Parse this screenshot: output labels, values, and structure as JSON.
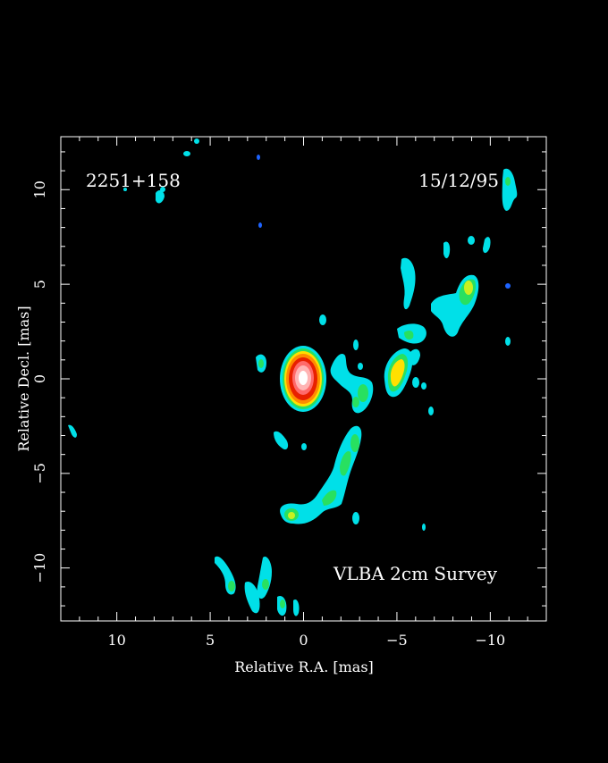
{
  "image": {
    "source_label": "2251+158",
    "date_label": "15/12/95",
    "survey_label": "VLBA 2cm Survey",
    "x_axis_label": "Relative R.A. [mas]",
    "y_axis_label": "Relative Decl. [mas]",
    "x_range_mas": [
      13,
      -13
    ],
    "y_range_mas": [
      -12.8,
      12.8
    ],
    "x_ticks": [
      {
        "value": 10,
        "label": "10"
      },
      {
        "value": 5,
        "label": "5"
      },
      {
        "value": 0,
        "label": "0"
      },
      {
        "value": -5,
        "label": "−5"
      },
      {
        "value": -10,
        "label": "−10"
      }
    ],
    "y_ticks": [
      {
        "value": 10,
        "label": "10"
      },
      {
        "value": 5,
        "label": "5"
      },
      {
        "value": 0,
        "label": "0"
      },
      {
        "value": -5,
        "label": "−5"
      },
      {
        "value": -10,
        "label": "−10"
      }
    ],
    "colors": {
      "background": "#000000",
      "frame": "#ffffff",
      "level_blue": "#1e64ff",
      "level_cyan": "#00e0e8",
      "level_green": "#28e060",
      "level_yellow": "#ffe000",
      "level_orange": "#ff8c00",
      "level_red": "#e82000",
      "level_peak": "#ffffff"
    }
  }
}
